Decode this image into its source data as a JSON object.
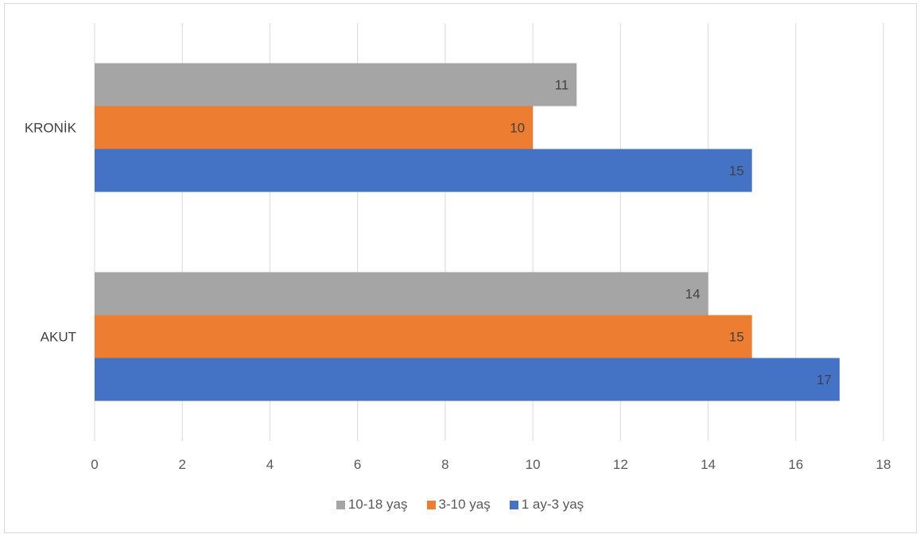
{
  "chart_data": {
    "type": "bar",
    "orientation": "horizontal",
    "categories": [
      "AKUT",
      "KRONİK"
    ],
    "series": [
      {
        "name": "1 ay-3 yaş",
        "color": "#4472c4",
        "values": [
          17,
          15
        ]
      },
      {
        "name": "3-10 yaş",
        "color": "#ed7d31",
        "values": [
          15,
          10
        ]
      },
      {
        "name": "10-18 yaş",
        "color": "#a5a5a5",
        "values": [
          14,
          11
        ]
      }
    ],
    "xlim": [
      0,
      18
    ],
    "xticks": [
      0,
      2,
      4,
      6,
      8,
      10,
      12,
      14,
      16,
      18
    ],
    "grid": true,
    "legend_position": "bottom",
    "legend_order": [
      "10-18 yaş",
      "3-10 yaş",
      "1 ay-3 yaş"
    ]
  }
}
